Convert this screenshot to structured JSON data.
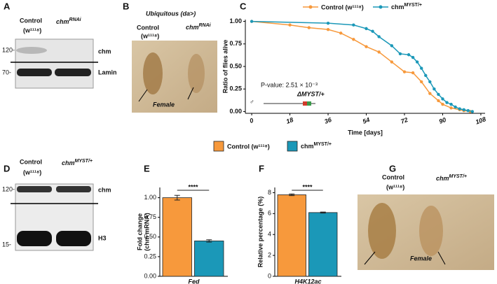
{
  "panel_a": {
    "label": "A",
    "control": "Control",
    "control_genotype": "(w¹¹¹⁸)",
    "knockdown": "chm",
    "knockdown_superscript": "RNAi",
    "markers": [
      "120-",
      "70-"
    ],
    "bands": [
      "chm",
      "Lamin"
    ]
  },
  "panel_b": {
    "label": "B",
    "title": "Ubiquitous (da>)",
    "control": "Control",
    "control_genotype": "(w¹¹¹⁸)",
    "knockdown": "chm",
    "knockdown_superscript": "RNAi",
    "annotation": "Female"
  },
  "panel_d": {
    "label": "D",
    "control": "Control",
    "control_genotype": "(w¹¹¹⁸)",
    "mutant": "chm",
    "mutant_superscript": "MYST/+",
    "markers": [
      "120-",
      "15-"
    ],
    "bands": [
      "chm",
      "H3"
    ]
  },
  "panel_g": {
    "label": "G",
    "control": "Control",
    "control_genotype": "(w¹¹¹⁸)",
    "mutant": "chm",
    "mutant_superscript": "MYST/+",
    "annotation": "Female"
  },
  "chart_data": [
    {
      "type": "line",
      "panel_label": "C",
      "xlabel": "Time [days]",
      "ylabel": "Ratio of flies alive",
      "xlim": [
        -3,
        110
      ],
      "xticks": [
        0,
        18,
        36,
        54,
        72,
        90,
        108
      ],
      "ylim": [
        -0.02,
        1.02
      ],
      "yticks": [
        {
          "value": 0,
          "label": "0.00"
        },
        {
          "value": 0.25,
          "label": "0.25"
        },
        {
          "value": 0.5,
          "label": "0.50"
        },
        {
          "value": 0.75,
          "label": "0.75"
        },
        {
          "value": 1,
          "label": "1.00"
        }
      ],
      "p_value": "P-value: 2.51 × 10⁻³",
      "sex_symbol": "♂",
      "genotype_label": "ΔMYST/+",
      "series": [
        {
          "name": "Control (w¹¹¹⁸)",
          "color": "#f7993c",
          "x": [
            0,
            18,
            27,
            36,
            42,
            48,
            54,
            60,
            66,
            72,
            76,
            80,
            84,
            88,
            90,
            94,
            98,
            100,
            103
          ],
          "values": [
            1.0,
            0.96,
            0.93,
            0.91,
            0.87,
            0.8,
            0.72,
            0.66,
            0.55,
            0.44,
            0.43,
            0.33,
            0.2,
            0.12,
            0.08,
            0.04,
            0.02,
            0.01,
            0.0
          ]
        },
        {
          "name": "chm",
          "name_superscript": "MYST/+",
          "color": "#1b98b8",
          "x": [
            0,
            36,
            48,
            54,
            57,
            60,
            66,
            70,
            74,
            76,
            78,
            80,
            82,
            84,
            86,
            88,
            90,
            92,
            94,
            96,
            98,
            100,
            102,
            104
          ],
          "values": [
            1.0,
            0.98,
            0.96,
            0.92,
            0.89,
            0.83,
            0.73,
            0.64,
            0.63,
            0.6,
            0.55,
            0.48,
            0.4,
            0.33,
            0.25,
            0.19,
            0.14,
            0.1,
            0.08,
            0.05,
            0.03,
            0.02,
            0.01,
            0.0
          ]
        }
      ]
    },
    {
      "type": "bar",
      "panel_label": "E",
      "category": "Fed",
      "ylabel": [
        "Fold change",
        "(chm mRNA)"
      ],
      "significance": "****",
      "ylim": [
        0,
        1.13
      ],
      "yticks": [
        {
          "value": 0,
          "label": "0.00"
        },
        {
          "value": 0.25,
          "label": "0.25"
        },
        {
          "value": 0.5,
          "label": "0.50"
        },
        {
          "value": 0.75,
          "label": "0.75"
        },
        {
          "value": 1,
          "label": "1.00"
        }
      ],
      "series": [
        {
          "name": "Control (w¹¹¹⁸)",
          "color": "#f7993c",
          "values": [
            1.0
          ],
          "errors": [
            0.03
          ]
        },
        {
          "name": "chm",
          "name_superscript": "MYST/+",
          "color": "#1b98b8",
          "values": [
            0.45
          ],
          "errors": [
            0.015
          ]
        }
      ]
    },
    {
      "type": "bar",
      "panel_label": "F",
      "category": "H4K12ac",
      "ylabel": [
        "Relative percentage (%)"
      ],
      "significance": "****",
      "ylim": [
        0,
        8.5
      ],
      "yticks": [
        0,
        2,
        4,
        6,
        8
      ],
      "series": [
        {
          "color": "#f7993c",
          "values": [
            7.8
          ],
          "errors": [
            0.08
          ]
        },
        {
          "color": "#1b98b8",
          "values": [
            6.1
          ],
          "errors": [
            0.05
          ]
        }
      ]
    }
  ]
}
